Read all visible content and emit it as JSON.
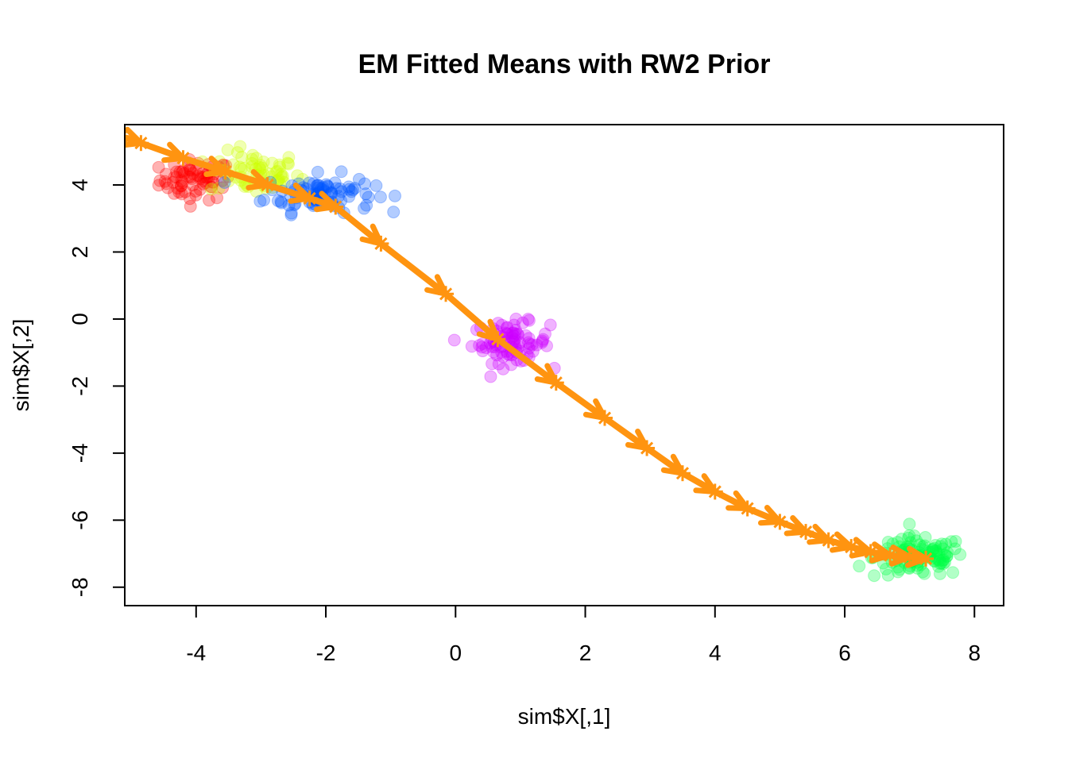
{
  "chart_data": {
    "type": "scatter",
    "title": "EM Fitted Means with RW2 Prior",
    "xlabel": "sim$X[,1]",
    "ylabel": "sim$X[,2]",
    "xlim": [
      -5.1,
      8.45
    ],
    "ylim": [
      -8.55,
      5.8
    ],
    "xticks": [
      -4,
      -2,
      0,
      2,
      4,
      6,
      8
    ],
    "yticks": [
      -8,
      -6,
      -4,
      -2,
      0,
      2,
      4
    ],
    "grid": false,
    "clusters": [
      {
        "color": "#ff0000",
        "center": [
          -4.0,
          4.15
        ],
        "spread": [
          0.28,
          0.3
        ],
        "count": 70
      },
      {
        "color": "#ccff00",
        "center": [
          -3.1,
          4.35
        ],
        "spread": [
          0.35,
          0.32
        ],
        "count": 65
      },
      {
        "color": "#0055ff",
        "center": [
          -2.1,
          3.75
        ],
        "spread": [
          0.42,
          0.28
        ],
        "count": 90
      },
      {
        "color": "#cc00ff",
        "center": [
          0.85,
          -0.7
        ],
        "spread": [
          0.3,
          0.3
        ],
        "count": 90
      },
      {
        "color": "#00ff44",
        "center": [
          7.15,
          -7.1
        ],
        "spread": [
          0.35,
          0.3
        ],
        "count": 110
      }
    ],
    "fitted_means": {
      "color": "#ff9410",
      "x": [
        -5.15,
        -4.85,
        -4.2,
        -3.55,
        -2.9,
        -2.25,
        -1.85,
        -1.15,
        -0.15,
        0.65,
        1.55,
        2.3,
        2.95,
        3.5,
        4.0,
        4.5,
        5.0,
        5.4,
        5.75,
        6.1,
        6.4,
        6.7,
        7.0,
        7.25
      ],
      "y": [
        5.45,
        5.25,
        4.8,
        4.4,
        4.0,
        3.6,
        3.35,
        2.25,
        0.75,
        -0.6,
        -1.9,
        -2.95,
        -3.85,
        -4.6,
        -5.15,
        -5.65,
        -6.05,
        -6.35,
        -6.6,
        -6.8,
        -6.95,
        -7.05,
        -7.1,
        -7.15
      ]
    }
  }
}
